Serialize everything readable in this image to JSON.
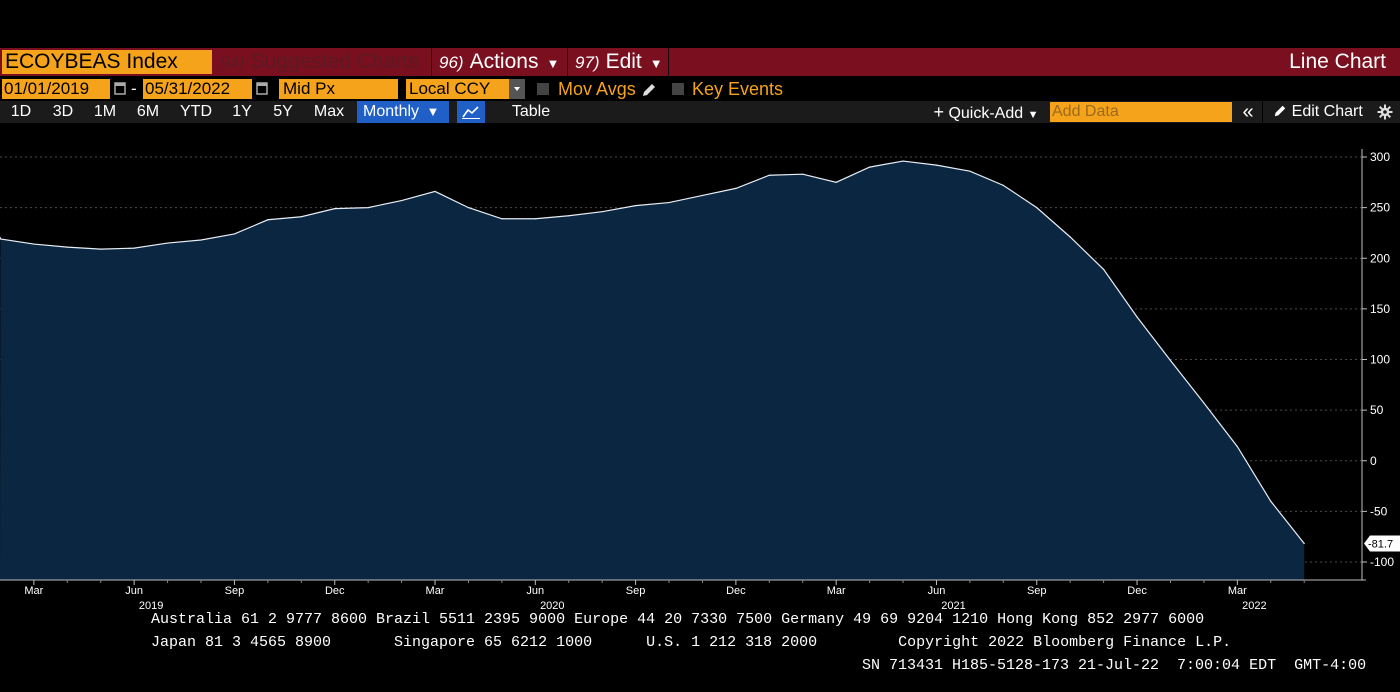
{
  "toolbar": {
    "ticker": "ECOYBEAS Index",
    "menus": [
      {
        "num": "94)",
        "label": "Suggested Charts"
      },
      {
        "num": "96)",
        "label": "Actions"
      },
      {
        "num": "97)",
        "label": "Edit"
      }
    ],
    "chart_kind": "Line Chart"
  },
  "controls": {
    "start_date": "01/01/2019",
    "end_date": "05/31/2022",
    "date_separator": "-",
    "price_field": "Mid Px",
    "currency": "Local CCY",
    "mov_avgs": "Mov Avgs",
    "key_events": "Key Events"
  },
  "range_bar": {
    "ranges": [
      "1D",
      "3D",
      "1M",
      "6M",
      "YTD",
      "1Y",
      "5Y",
      "Max"
    ],
    "frequency": "Monthly",
    "table": "Table",
    "quick_add": "Quick-Add",
    "add_data_placeholder": "Add Data",
    "collapse": "«",
    "edit_chart": "Edit Chart"
  },
  "colors": {
    "accent_orange": "#f5a31a",
    "header_red": "#7a0f1f",
    "area_fill": "#0b2640",
    "line": "#e8eef5",
    "selected_blue": "#1f5fc6"
  },
  "chart_data": {
    "type": "area",
    "x": [
      "2019-01",
      "2019-02",
      "2019-03",
      "2019-04",
      "2019-05",
      "2019-06",
      "2019-07",
      "2019-08",
      "2019-09",
      "2019-10",
      "2019-11",
      "2019-12",
      "2020-01",
      "2020-02",
      "2020-03",
      "2020-04",
      "2020-05",
      "2020-06",
      "2020-07",
      "2020-08",
      "2020-09",
      "2020-10",
      "2020-11",
      "2020-12",
      "2021-01",
      "2021-02",
      "2021-03",
      "2021-04",
      "2021-05",
      "2021-06",
      "2021-07",
      "2021-08",
      "2021-09",
      "2021-10",
      "2021-11",
      "2021-12",
      "2022-01",
      "2022-02",
      "2022-03",
      "2022-04",
      "2022-05"
    ],
    "values": [
      221,
      219,
      214,
      211,
      209,
      210,
      215,
      218,
      224,
      238,
      241,
      249,
      250,
      257,
      266,
      250,
      239,
      239,
      242,
      246,
      252,
      255,
      262,
      269,
      282,
      283,
      275,
      290,
      296,
      292,
      286,
      272,
      250,
      221,
      189,
      142,
      99,
      57,
      14,
      -40,
      -81.7
    ],
    "last_value_label": "-81.7",
    "ylim": [
      -112,
      306
    ],
    "y_ticks": [
      300,
      250,
      200,
      150,
      100,
      50,
      0,
      -50,
      -100
    ],
    "y_tick_labels": [
      "300",
      "250",
      "200",
      "150",
      "100",
      "50",
      "0",
      "-50",
      "-100"
    ],
    "x_tick_labels": [
      {
        "label": "Mar",
        "year": ""
      },
      {
        "label": "Jun",
        "year": "2019"
      },
      {
        "label": "Sep",
        "year": ""
      },
      {
        "label": "Dec",
        "year": ""
      },
      {
        "label": "Mar",
        "year": ""
      },
      {
        "label": "Jun",
        "year": "2020"
      },
      {
        "label": "Sep",
        "year": ""
      },
      {
        "label": "Dec",
        "year": ""
      },
      {
        "label": "Mar",
        "year": ""
      },
      {
        "label": "Jun",
        "year": "2021"
      },
      {
        "label": "Sep",
        "year": ""
      },
      {
        "label": "Dec",
        "year": ""
      },
      {
        "label": "Mar",
        "year": "2022"
      }
    ],
    "x_tick_months": [
      2,
      5,
      8,
      11,
      14,
      17,
      20,
      23,
      26,
      29,
      32,
      35,
      38
    ],
    "grid": true
  },
  "footer": {
    "line1": "Australia 61 2 9777 8600 Brazil 5511 2395 9000 Europe 44 20 7330 7500 Germany 49 69 9204 1210 Hong Kong 852 2977 6000",
    "line2": "Japan 81 3 4565 8900       Singapore 65 6212 1000      U.S. 1 212 318 2000         Copyright 2022 Bloomberg Finance L.P.",
    "line3": "SN 713431 H185-5128-173 21-Jul-22  7:00:04 EDT  GMT-4:00"
  }
}
